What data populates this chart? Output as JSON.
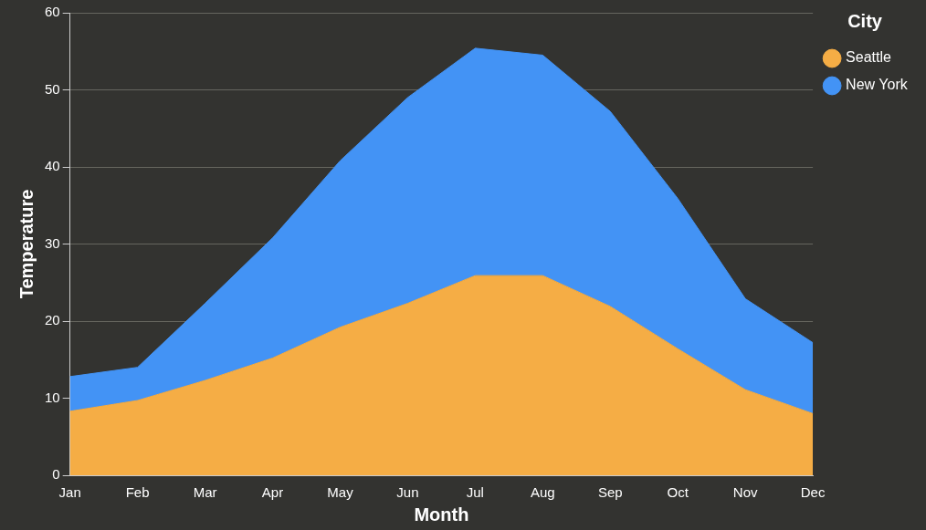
{
  "chart_data": {
    "type": "area",
    "xlabel": "Month",
    "ylabel": "Temperature",
    "legend_title": "City",
    "categories": [
      "Jan",
      "Feb",
      "Mar",
      "Apr",
      "May",
      "Jun",
      "Jul",
      "Aug",
      "Sep",
      "Oct",
      "Nov",
      "Dec"
    ],
    "series": [
      {
        "name": "Seattle",
        "color": "#f5ad45",
        "values": [
          8.3,
          9.7,
          12.3,
          15.2,
          19.2,
          22.3,
          25.9,
          25.9,
          21.9,
          16.4,
          11.1,
          8.0
        ]
      },
      {
        "name": "New York",
        "color": "#4393f5",
        "values": [
          4.5,
          4.3,
          10.0,
          15.6,
          21.6,
          26.7,
          29.5,
          28.6,
          25.3,
          19.5,
          11.8,
          9.2
        ]
      }
    ],
    "stacked": true,
    "ylim": [
      0,
      60
    ],
    "yticks": [
      0,
      10,
      20,
      30,
      40,
      50,
      60
    ],
    "grid": "y",
    "legend": "top right",
    "marker": "none"
  }
}
